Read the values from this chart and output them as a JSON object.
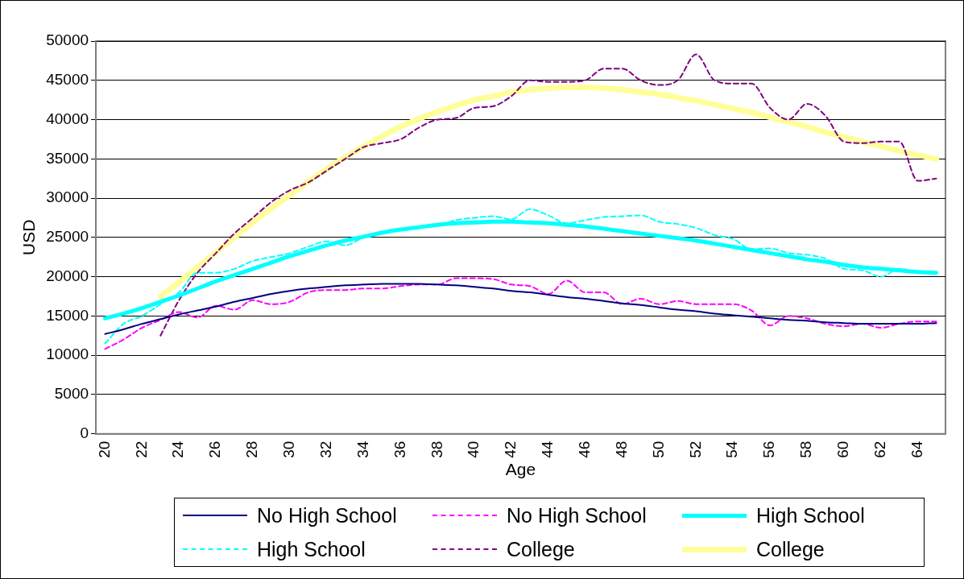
{
  "chart_data": {
    "type": "line",
    "xlabel": "Age",
    "ylabel": "USD",
    "categories": [
      "20",
      null,
      "22",
      null,
      "24",
      null,
      "26",
      null,
      "28",
      null,
      "30",
      null,
      "32",
      null,
      "34",
      null,
      "36",
      null,
      "38",
      null,
      "40",
      null,
      "42",
      null,
      "44",
      null,
      "46",
      null,
      "48",
      null,
      "50",
      null,
      "52",
      null,
      "54",
      null,
      "56",
      null,
      "58",
      null,
      "60",
      null,
      "62",
      null,
      "64",
      null
    ],
    "ylim": [
      0,
      50000
    ],
    "yticks": [
      0,
      5000,
      10000,
      15000,
      20000,
      25000,
      30000,
      35000,
      40000,
      45000,
      50000
    ],
    "grid": "y",
    "legend": "bottom",
    "marker": "none",
    "series": [
      {
        "name": "No High School",
        "color": "#000080",
        "line_style": "solid",
        "values": [
          12700,
          13300,
          14000,
          14600,
          15200,
          15700,
          16200,
          16800,
          17300,
          17800,
          18200,
          18500,
          18700,
          18900,
          19000,
          19100,
          19100,
          19100,
          19000,
          18900,
          18700,
          18500,
          18200,
          18000,
          17700,
          17400,
          17200,
          16900,
          16600,
          16400,
          16100,
          15800,
          15600,
          15300,
          15100,
          14900,
          14700,
          14500,
          14400,
          14200,
          14100,
          14000,
          14000,
          14000,
          14000,
          14100
        ]
      },
      {
        "name": "No High School",
        "color": "#ff00ff",
        "line_style": "dashed",
        "values": [
          10800,
          12000,
          13500,
          14500,
          15500,
          14800,
          16300,
          15800,
          17000,
          16500,
          16800,
          18000,
          18300,
          18300,
          18500,
          18500,
          18800,
          19000,
          19000,
          19800,
          19800,
          19700,
          19000,
          18800,
          17800,
          19500,
          18000,
          18000,
          16500,
          17200,
          16500,
          16900,
          16500,
          16500,
          16500,
          15700,
          13800,
          15000,
          14700,
          14000,
          13700,
          14000,
          13500,
          14000,
          14300,
          14300
        ]
      },
      {
        "name": "High School",
        "color": "#00ffff",
        "line_style": "solid",
        "values": [
          14700,
          15300,
          16000,
          16800,
          17600,
          18500,
          19400,
          20200,
          21000,
          21800,
          22600,
          23300,
          24000,
          24600,
          25100,
          25600,
          26000,
          26300,
          26600,
          26800,
          26900,
          27000,
          27000,
          26900,
          26800,
          26600,
          26400,
          26100,
          25800,
          25500,
          25200,
          24900,
          24600,
          24200,
          23800,
          23400,
          23000,
          22600,
          22200,
          21900,
          21500,
          21200,
          21000,
          20800,
          20600,
          20500
        ]
      },
      {
        "name": "High School",
        "color": "#00ffff",
        "line_style": "dashed",
        "values": [
          11500,
          14000,
          15000,
          16500,
          18000,
          20500,
          20500,
          21000,
          22000,
          22500,
          23000,
          23800,
          24500,
          24000,
          25000,
          25500,
          26000,
          26300,
          26500,
          27200,
          27500,
          27700,
          27300,
          28600,
          27800,
          26800,
          27200,
          27600,
          27700,
          27800,
          27000,
          26700,
          26200,
          25300,
          24800,
          23500,
          23600,
          23000,
          22800,
          22300,
          21000,
          20800,
          20000,
          21000,
          20600,
          20500
        ]
      },
      {
        "name": "College",
        "color": "#800080",
        "line_style": "dashed",
        "values": [
          null,
          null,
          null,
          12500,
          17000,
          20500,
          23000,
          25500,
          27500,
          29500,
          31000,
          32000,
          33500,
          35000,
          36500,
          37000,
          37500,
          39000,
          40000,
          40200,
          41500,
          41700,
          43000,
          45000,
          44800,
          44800,
          45000,
          46500,
          46500,
          45000,
          44400,
          45000,
          48300,
          45000,
          44600,
          44600,
          41500,
          40000,
          42000,
          40500,
          37200,
          37000,
          37200,
          37200,
          32200,
          32500
        ]
      },
      {
        "name": "College",
        "color": "#ffff99",
        "line_style": "solid",
        "values": [
          null,
          null,
          null,
          17500,
          19300,
          21200,
          23100,
          25000,
          26900,
          28700,
          30400,
          32100,
          33700,
          35200,
          36600,
          37900,
          39100,
          40100,
          41000,
          41800,
          42500,
          43000,
          43500,
          43800,
          44000,
          44100,
          44100,
          44000,
          43800,
          43500,
          43200,
          42800,
          42400,
          41900,
          41400,
          40900,
          40300,
          39700,
          39100,
          38400,
          37800,
          37200,
          36600,
          36000,
          35500,
          35000
        ]
      }
    ]
  }
}
